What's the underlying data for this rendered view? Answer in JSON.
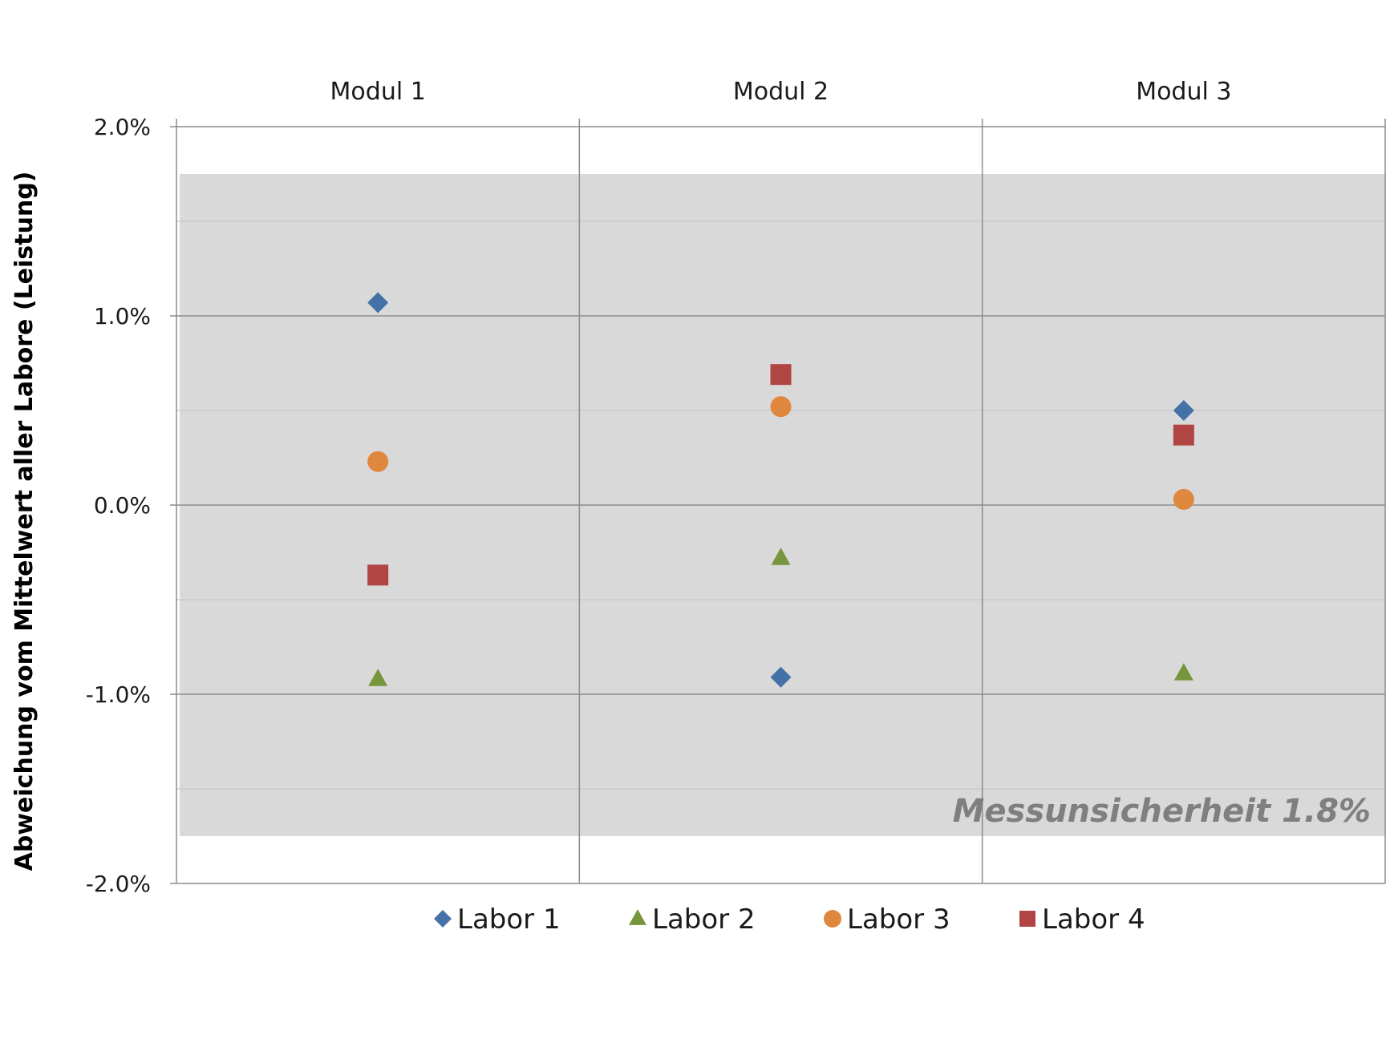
{
  "chart_data": {
    "type": "scatter",
    "categories": [
      "Modul 1",
      "Modul 2",
      "Modul 3"
    ],
    "ylabel": "Abweichung vom Mittelwert aller Labore (Leistung)",
    "ylim": [
      -0.02,
      0.02
    ],
    "yticks": [
      0.02,
      0.01,
      0.0,
      -0.01,
      -0.02
    ],
    "ytick_labels": [
      "2.0%",
      "1.0%",
      "0.0%",
      "-1.0%",
      "-2.0%"
    ],
    "minor_gridlines": [
      0.015,
      0.005,
      -0.005,
      -0.015
    ],
    "grid": true,
    "legend_position": "bottom",
    "uncertainty_band": {
      "low": -0.0175,
      "high": 0.0175,
      "label": "Messunsicherheit 1.8%",
      "color": "#d9d9d9"
    },
    "series": [
      {
        "name": "Labor 1",
        "marker": "diamond",
        "color": "#4472a8",
        "values": [
          0.0107,
          -0.0091,
          0.005
        ]
      },
      {
        "name": "Labor 2",
        "marker": "triangle",
        "color": "#77953c",
        "values": [
          -0.0092,
          -0.0028,
          -0.0089
        ]
      },
      {
        "name": "Labor 3",
        "marker": "circle",
        "color": "#e0873e",
        "values": [
          0.0023,
          0.0052,
          0.0003
        ]
      },
      {
        "name": "Labor 4",
        "marker": "square",
        "color": "#b14544",
        "values": [
          -0.0037,
          0.0069,
          0.0037
        ]
      }
    ]
  }
}
